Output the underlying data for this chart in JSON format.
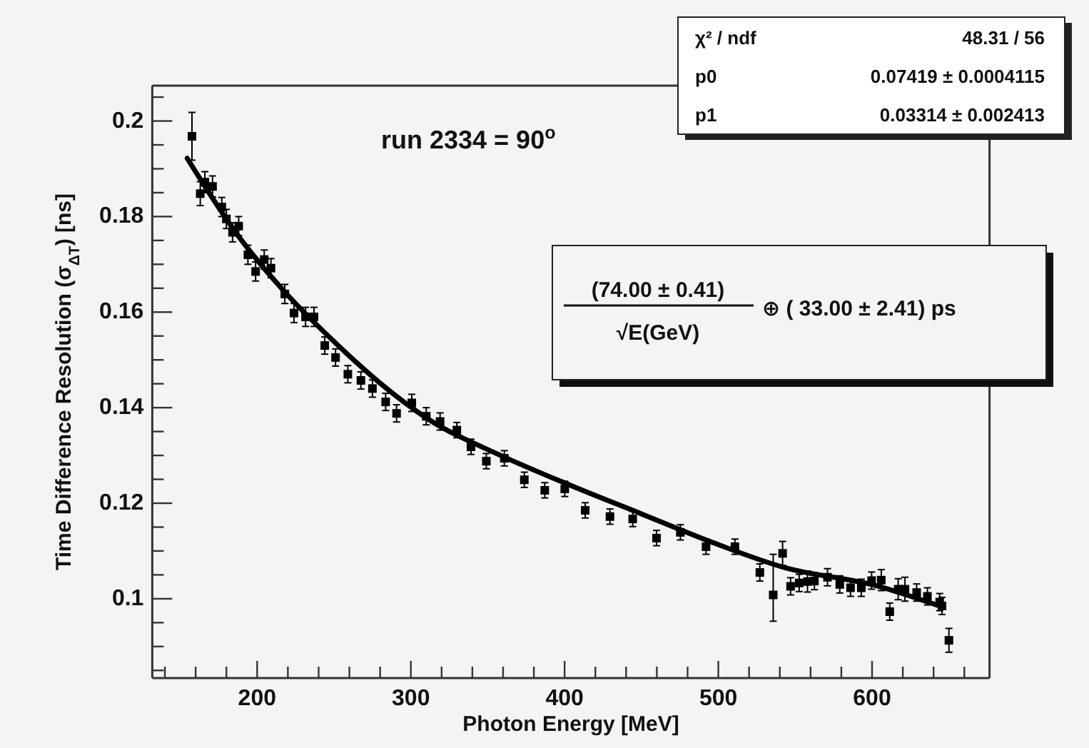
{
  "chart_data": {
    "type": "scatter",
    "xlabel": "Photon Energy [MeV]",
    "ylabel": "Time Difference Resolution  (σ$_{ΔT}$)  [ns]",
    "xlim": [
      131.8,
      676.4
    ],
    "ylim": [
      0.0834,
      0.2074
    ],
    "xticks": [
      {
        "value": 140,
        "label": null
      },
      {
        "value": 160,
        "label": null
      },
      {
        "value": 180,
        "label": null
      },
      200,
      {
        "value": 220,
        "label": null
      },
      {
        "value": 240,
        "label": null
      },
      {
        "value": 260,
        "label": null
      },
      {
        "value": 280,
        "label": null
      },
      300,
      {
        "value": 320,
        "label": null
      },
      {
        "value": 340,
        "label": null
      },
      {
        "value": 360,
        "label": null
      },
      {
        "value": 380,
        "label": null
      },
      400,
      {
        "value": 420,
        "label": null
      },
      {
        "value": 440,
        "label": null
      },
      {
        "value": 460,
        "label": null
      },
      {
        "value": 480,
        "label": null
      },
      500,
      {
        "value": 520,
        "label": null
      },
      {
        "value": 540,
        "label": null
      },
      {
        "value": 560,
        "label": null
      },
      {
        "value": 580,
        "label": null
      },
      600,
      {
        "value": 620,
        "label": null
      },
      {
        "value": 640,
        "label": null
      },
      {
        "value": 660,
        "label": null
      }
    ],
    "yticks": [
      {
        "value": 0.085,
        "label": null
      },
      {
        "value": 0.09,
        "label": null
      },
      {
        "value": 0.095,
        "label": null
      },
      0.1,
      {
        "value": 0.105,
        "label": null
      },
      {
        "value": 0.11,
        "label": null
      },
      {
        "value": 0.115,
        "label": null
      },
      0.12,
      {
        "value": 0.125,
        "label": null
      },
      {
        "value": 0.13,
        "label": null
      },
      {
        "value": 0.135,
        "label": null
      },
      0.14,
      {
        "value": 0.145,
        "label": null
      },
      {
        "value": 0.15,
        "label": null
      },
      {
        "value": 0.155,
        "label": null
      },
      0.16,
      {
        "value": 0.165,
        "label": null
      },
      {
        "value": 0.17,
        "label": null
      },
      {
        "value": 0.175,
        "label": null
      },
      0.18,
      {
        "value": 0.185,
        "label": null
      },
      {
        "value": 0.19,
        "label": null
      },
      {
        "value": 0.195,
        "label": null
      },
      0.2,
      {
        "value": 0.205,
        "label": null
      }
    ],
    "grid": false,
    "annotations": [
      "run 2334 = 90$^{o}$",
      "χ² / ndf",
      "48.31 / 56",
      "p0",
      "0.07419 ± 0.0004115",
      "p1",
      "0.03314 ± 0.002413",
      "(74.00 ± 0.41)",
      "√E(GeV)",
      "⊕  ( 33.00 ± 2.41) ps"
    ],
    "series": [
      {
        "color": "#000000",
        "marker": "square",
        "x": [
          157.6,
          163,
          166,
          171,
          177,
          180,
          184,
          188,
          194,
          199,
          204.6,
          209,
          218,
          224,
          231.5,
          237,
          244,
          251,
          259,
          267.5,
          275,
          283.6,
          290.7,
          300.6,
          310,
          319,
          329.9,
          339.1,
          349.1,
          360.8,
          373.8,
          387.1,
          400.1,
          413.4,
          429.5,
          444.3,
          459.8,
          475.3,
          492,
          510.8,
          527,
          535.7,
          541.8,
          547,
          552.6,
          558,
          562.5,
          571,
          579,
          586,
          593,
          599.7,
          606,
          611.5,
          617,
          621.4,
          629,
          636,
          644,
          645.5,
          650
        ],
        "values": [
          0.1968,
          0.1848,
          0.1872,
          0.1863,
          0.182,
          0.1795,
          0.1767,
          0.178,
          0.172,
          0.1685,
          0.171,
          0.1692,
          0.1638,
          0.1598,
          0.159,
          0.159,
          0.153,
          0.1505,
          0.147,
          0.1457,
          0.144,
          0.1412,
          0.1388,
          0.141,
          0.1382,
          0.1371,
          0.1353,
          0.1318,
          0.1288,
          0.1294,
          0.1249,
          0.1227,
          0.123,
          0.1185,
          0.1172,
          0.1167,
          0.1127,
          0.1139,
          0.1109,
          0.1109,
          0.1055,
          0.1008,
          0.1095,
          0.1026,
          0.1033,
          0.1036,
          0.1037,
          0.1045,
          0.103,
          0.1023,
          0.1023,
          0.1038,
          0.1039,
          0.0973,
          0.102,
          0.102,
          0.1013,
          0.1005,
          0.0993,
          0.0985,
          0.0913
        ],
        "errors": [
          0.005,
          0.0025,
          0.0022,
          0.0022,
          0.002,
          0.002,
          0.002,
          0.002,
          0.002,
          0.002,
          0.002,
          0.002,
          0.002,
          0.002,
          0.002,
          0.002,
          0.0018,
          0.0018,
          0.0018,
          0.0018,
          0.0018,
          0.0018,
          0.0018,
          0.0018,
          0.0018,
          0.0018,
          0.0016,
          0.0016,
          0.0016,
          0.0016,
          0.0016,
          0.0016,
          0.0016,
          0.0016,
          0.0016,
          0.0016,
          0.0016,
          0.0016,
          0.0016,
          0.0016,
          0.0018,
          [
            0.0953,
            0.1093
          ],
          0.0025,
          0.0018,
          0.0018,
          0.0022,
          0.0018,
          0.0018,
          0.0018,
          0.0018,
          0.0018,
          0.0018,
          0.0022,
          0.0018,
          0.0022,
          0.0025,
          0.0018,
          0.0018,
          0.0018,
          0.0018,
          0.0025
        ]
      },
      {
        "type": "line",
        "color": "#000000",
        "line_style": "solid",
        "x": [
          154.5,
          187.6,
          218.6,
          249.5,
          280.5,
          311.3,
          357.7,
          404.1,
          450.5,
          496.9,
          543.3,
          602,
          645.5
        ],
        "values": [
          0.1922,
          0.176,
          0.164,
          0.154,
          0.145,
          0.1376,
          0.1301,
          0.1237,
          0.1177,
          0.1117,
          0.1065,
          0.1028,
          0.0983
        ]
      }
    ]
  }
}
